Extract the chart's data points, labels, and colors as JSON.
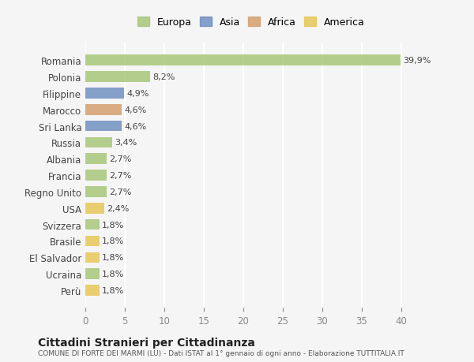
{
  "categories": [
    "Romania",
    "Polonia",
    "Filippine",
    "Marocco",
    "Sri Lanka",
    "Russia",
    "Albania",
    "Francia",
    "Regno Unito",
    "USA",
    "Svizzera",
    "Brasile",
    "El Salvador",
    "Ucraina",
    "Perù"
  ],
  "values": [
    39.9,
    8.2,
    4.9,
    4.6,
    4.6,
    3.4,
    2.7,
    2.7,
    2.7,
    2.4,
    1.8,
    1.8,
    1.8,
    1.8,
    1.8
  ],
  "labels": [
    "39,9%",
    "8,2%",
    "4,9%",
    "4,6%",
    "4,6%",
    "3,4%",
    "2,7%",
    "2,7%",
    "2,7%",
    "2,4%",
    "1,8%",
    "1,8%",
    "1,8%",
    "1,8%",
    "1,8%"
  ],
  "continent": [
    "Europa",
    "Europa",
    "Asia",
    "Africa",
    "Asia",
    "Europa",
    "Europa",
    "Europa",
    "Europa",
    "America",
    "Europa",
    "America",
    "America",
    "Europa",
    "America"
  ],
  "colors": {
    "Europa": "#a8c87a",
    "Asia": "#7090c0",
    "Africa": "#d4a070",
    "America": "#e8c858"
  },
  "legend_colors": {
    "Europa": "#a8c87a",
    "Asia": "#7090c0",
    "Africa": "#d4a070",
    "America": "#e8c858"
  },
  "xlim": [
    0,
    42
  ],
  "xticks": [
    0,
    5,
    10,
    15,
    20,
    25,
    30,
    35,
    40
  ],
  "title": "Cittadini Stranieri per Cittadinanza",
  "subtitle": "COMUNE DI FORTE DEI MARMI (LU) - Dati ISTAT al 1° gennaio di ogni anno - Elaborazione TUTTITALIA.IT",
  "background_color": "#f5f5f5",
  "grid_color": "#ffffff",
  "bar_alpha": 0.85
}
